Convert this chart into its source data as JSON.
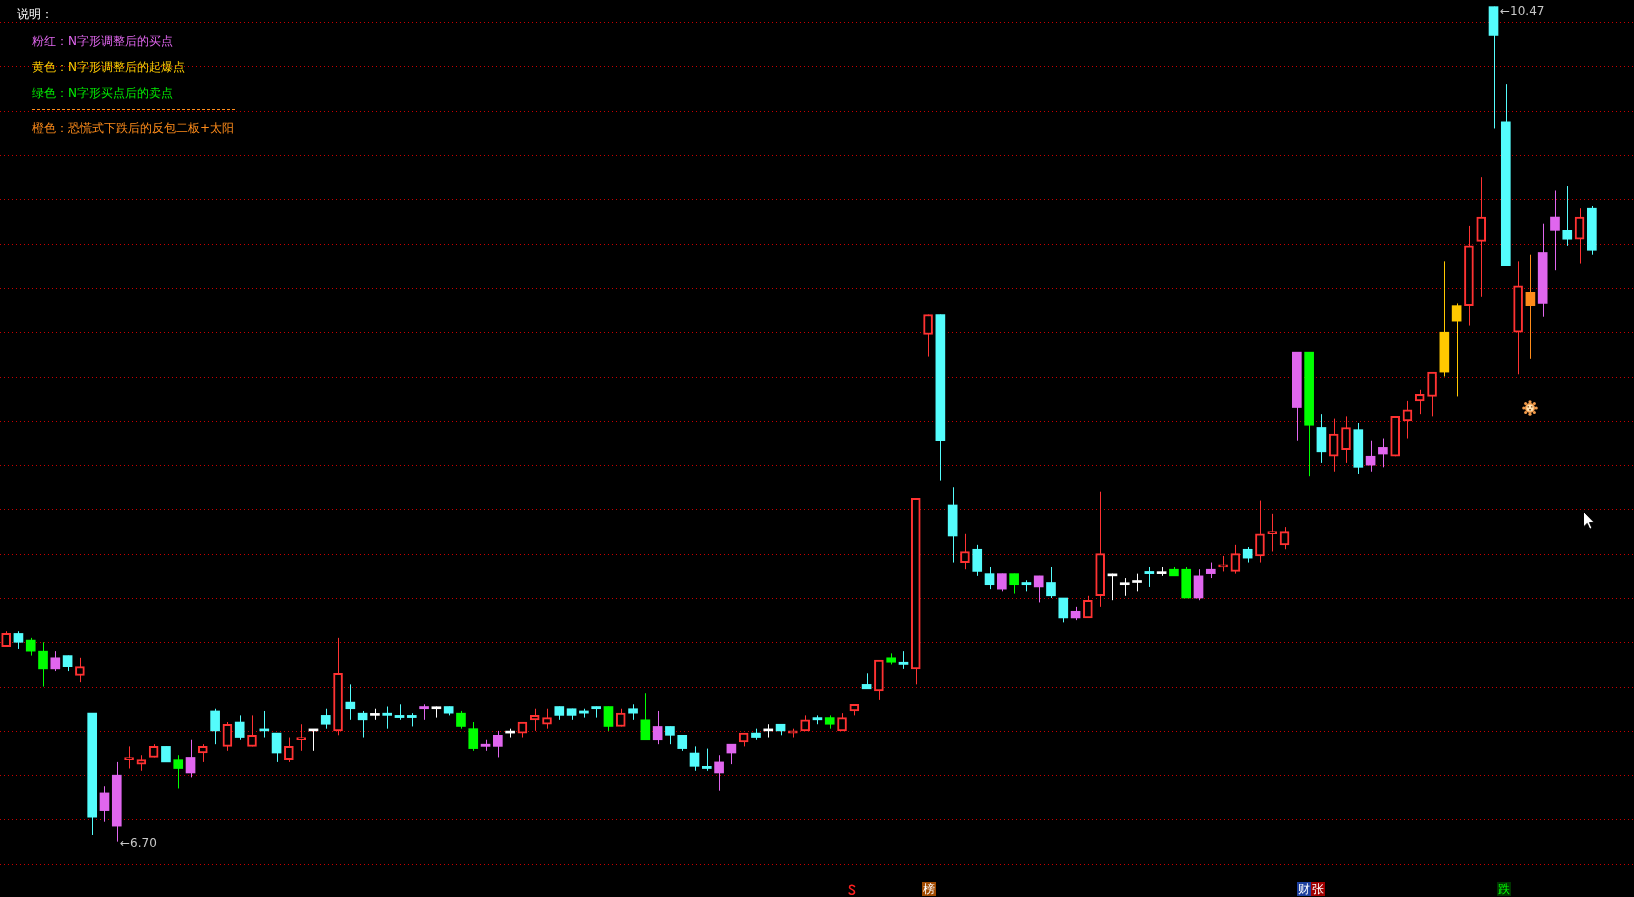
{
  "chart_data": {
    "type": "candlestick",
    "categories": [
      null,
      null,
      null,
      null,
      null,
      null,
      null,
      null,
      null,
      null,
      null,
      null,
      null,
      null,
      null,
      null,
      null,
      null,
      null,
      null,
      null,
      null,
      null,
      null,
      null,
      null,
      null,
      null,
      null,
      null,
      null,
      null,
      null,
      null,
      null,
      null,
      null,
      null,
      null,
      null,
      null,
      null,
      null,
      null,
      null,
      null,
      null,
      null,
      null,
      null,
      null,
      null,
      null,
      null,
      null,
      null,
      null,
      null,
      null,
      null,
      null,
      null,
      null,
      null,
      null,
      null,
      null,
      null,
      null,
      null,
      null,
      null,
      null,
      null,
      null,
      null,
      null,
      null,
      null,
      null,
      null,
      null,
      null,
      null,
      null,
      null,
      null,
      null,
      null,
      null,
      null,
      null,
      null,
      null,
      null,
      null,
      null,
      null,
      null,
      null,
      null,
      null,
      null,
      null,
      null,
      null,
      null,
      null,
      null,
      null,
      null,
      null,
      null,
      null,
      null,
      null,
      null,
      null,
      null,
      null,
      null,
      null,
      null,
      null,
      null,
      null,
      null,
      null,
      null,
      null
    ],
    "ohlc": [
      [
        7.58,
        7.65,
        7.58,
        7.64
      ],
      [
        7.64,
        7.65,
        7.57,
        7.6
      ],
      [
        7.61,
        7.62,
        7.54,
        7.56
      ],
      [
        7.56,
        7.6,
        7.4,
        7.48
      ],
      [
        7.48,
        7.56,
        7.47,
        7.53
      ],
      [
        7.54,
        7.54,
        7.47,
        7.49
      ],
      [
        7.45,
        7.53,
        7.42,
        7.49
      ],
      [
        7.28,
        7.28,
        6.73,
        6.81
      ],
      [
        6.84,
        6.95,
        6.79,
        6.92
      ],
      [
        6.77,
        7.06,
        6.7,
        7.0
      ],
      [
        7.07,
        7.13,
        7.03,
        7.08
      ],
      [
        7.05,
        7.09,
        7.02,
        7.07
      ],
      [
        7.08,
        7.14,
        7.08,
        7.13
      ],
      [
        7.13,
        7.13,
        7.06,
        7.06
      ],
      [
        7.07,
        7.09,
        6.94,
        7.03
      ],
      [
        7.01,
        7.16,
        6.99,
        7.08
      ],
      [
        7.1,
        7.14,
        7.06,
        7.13
      ],
      [
        7.29,
        7.3,
        7.14,
        7.2
      ],
      [
        7.13,
        7.24,
        7.11,
        7.23
      ],
      [
        7.24,
        7.27,
        7.16,
        7.17
      ],
      [
        7.13,
        7.27,
        7.13,
        7.18
      ],
      [
        7.2,
        7.29,
        7.17,
        7.2
      ],
      [
        7.19,
        7.19,
        7.06,
        7.1
      ],
      [
        7.07,
        7.17,
        7.06,
        7.13
      ],
      [
        7.16,
        7.23,
        7.11,
        7.17
      ],
      [
        7.2,
        7.2,
        7.11,
        7.2
      ],
      [
        7.27,
        7.3,
        7.21,
        7.23
      ],
      [
        7.2,
        7.62,
        7.18,
        7.46
      ],
      [
        7.33,
        7.41,
        7.25,
        7.3
      ],
      [
        7.28,
        7.29,
        7.17,
        7.25
      ],
      [
        7.27,
        7.3,
        7.25,
        7.27
      ],
      [
        7.28,
        7.31,
        7.21,
        7.27
      ],
      [
        7.27,
        7.32,
        7.25,
        7.26
      ],
      [
        7.27,
        7.28,
        7.22,
        7.26
      ],
      [
        7.3,
        7.32,
        7.25,
        7.31
      ],
      [
        7.3,
        7.31,
        7.26,
        7.3
      ],
      [
        7.31,
        7.31,
        7.27,
        7.28
      ],
      [
        7.28,
        7.29,
        7.21,
        7.22
      ],
      [
        7.21,
        7.24,
        7.11,
        7.12
      ],
      [
        7.14,
        7.16,
        7.11,
        7.13
      ],
      [
        7.13,
        7.2,
        7.08,
        7.18
      ],
      [
        7.19,
        7.21,
        7.17,
        7.19
      ],
      [
        7.19,
        7.24,
        7.17,
        7.24
      ],
      [
        7.25,
        7.3,
        7.2,
        7.27
      ],
      [
        7.23,
        7.3,
        7.21,
        7.26
      ],
      [
        7.31,
        7.31,
        7.25,
        7.27
      ],
      [
        7.3,
        7.3,
        7.25,
        7.27
      ],
      [
        7.29,
        7.3,
        7.26,
        7.28
      ],
      [
        7.31,
        7.31,
        7.26,
        7.3
      ],
      [
        7.31,
        7.31,
        7.2,
        7.22
      ],
      [
        7.22,
        7.3,
        7.22,
        7.28
      ],
      [
        7.3,
        7.32,
        7.25,
        7.28
      ],
      [
        7.25,
        7.37,
        7.16,
        7.16
      ],
      [
        7.16,
        7.29,
        7.14,
        7.22
      ],
      [
        7.22,
        7.22,
        7.14,
        7.18
      ],
      [
        7.18,
        7.18,
        7.11,
        7.12
      ],
      [
        7.1,
        7.13,
        7.02,
        7.04
      ],
      [
        7.04,
        7.12,
        7.02,
        7.03
      ],
      [
        7.01,
        7.09,
        6.93,
        7.06
      ],
      [
        7.1,
        7.14,
        7.05,
        7.14
      ],
      [
        7.15,
        7.19,
        7.13,
        7.19
      ],
      [
        7.19,
        7.21,
        7.16,
        7.17
      ],
      [
        7.2,
        7.23,
        7.17,
        7.2
      ],
      [
        7.23,
        7.23,
        7.18,
        7.2
      ],
      [
        7.19,
        7.21,
        7.17,
        7.2
      ],
      [
        7.2,
        7.27,
        7.2,
        7.25
      ],
      [
        7.26,
        7.27,
        7.23,
        7.25
      ],
      [
        7.26,
        7.27,
        7.21,
        7.23
      ],
      [
        7.2,
        7.28,
        7.2,
        7.26
      ],
      [
        7.29,
        7.32,
        7.27,
        7.32
      ],
      [
        7.41,
        7.46,
        7.39,
        7.39
      ],
      [
        7.38,
        7.52,
        7.34,
        7.52
      ],
      [
        7.53,
        7.55,
        7.5,
        7.51
      ],
      [
        7.51,
        7.56,
        7.48,
        7.5
      ],
      [
        7.48,
        8.25,
        7.41,
        8.25
      ],
      [
        8.99,
        9.08,
        8.89,
        9.08
      ],
      [
        9.08,
        9.08,
        8.33,
        8.51
      ],
      [
        8.22,
        8.3,
        7.96,
        8.08
      ],
      [
        7.96,
        8.09,
        7.93,
        8.01
      ],
      [
        8.02,
        8.04,
        7.9,
        7.92
      ],
      [
        7.91,
        7.94,
        7.84,
        7.86
      ],
      [
        7.84,
        7.91,
        7.83,
        7.91
      ],
      [
        7.91,
        7.91,
        7.82,
        7.86
      ],
      [
        7.87,
        7.88,
        7.83,
        7.86
      ],
      [
        7.85,
        7.9,
        7.78,
        7.9
      ],
      [
        7.87,
        7.94,
        7.8,
        7.81
      ],
      [
        7.8,
        7.8,
        7.69,
        7.71
      ],
      [
        7.71,
        7.76,
        7.7,
        7.74
      ],
      [
        7.71,
        7.81,
        7.71,
        7.79
      ],
      [
        7.81,
        8.28,
        7.76,
        8.0
      ],
      [
        7.9,
        7.91,
        7.79,
        7.9
      ],
      [
        7.86,
        7.89,
        7.81,
        7.86
      ],
      [
        7.87,
        7.91,
        7.83,
        7.87
      ],
      [
        7.92,
        7.94,
        7.85,
        7.91
      ],
      [
        7.91,
        7.94,
        7.9,
        7.91
      ],
      [
        7.93,
        7.94,
        7.9,
        7.9
      ],
      [
        7.93,
        7.94,
        7.8,
        7.8
      ],
      [
        7.8,
        7.93,
        7.79,
        7.9
      ],
      [
        7.91,
        7.96,
        7.89,
        7.93
      ],
      [
        7.94,
        7.99,
        7.92,
        7.95
      ],
      [
        7.92,
        8.04,
        7.91,
        8.0
      ],
      [
        8.02,
        8.03,
        7.96,
        7.98
      ],
      [
        7.99,
        8.24,
        7.96,
        8.09
      ],
      [
        8.09,
        8.18,
        8.01,
        8.1
      ],
      [
        8.04,
        8.12,
        8.02,
        8.1
      ],
      [
        8.66,
        8.91,
        8.51,
        8.91
      ],
      [
        8.91,
        8.91,
        8.35,
        8.58
      ],
      [
        8.57,
        8.63,
        8.41,
        8.46
      ],
      [
        8.44,
        8.61,
        8.37,
        8.54
      ],
      [
        8.47,
        8.62,
        8.41,
        8.57
      ],
      [
        8.56,
        8.59,
        8.36,
        8.39
      ],
      [
        8.4,
        8.51,
        8.37,
        8.44
      ],
      [
        8.45,
        8.52,
        8.39,
        8.48
      ],
      [
        8.44,
        8.62,
        8.44,
        8.62
      ],
      [
        8.6,
        8.69,
        8.52,
        8.65
      ],
      [
        8.69,
        8.74,
        8.63,
        8.72
      ],
      [
        8.71,
        8.82,
        8.62,
        8.82
      ],
      [
        8.82,
        9.32,
        8.8,
        9.0
      ],
      [
        9.05,
        9.13,
        8.71,
        9.12
      ],
      [
        9.12,
        9.48,
        9.03,
        9.39
      ],
      [
        9.41,
        9.7,
        9.16,
        9.52
      ],
      [
        10.47,
        10.47,
        9.92,
        10.34
      ],
      [
        9.95,
        10.12,
        9.3,
        9.3
      ],
      [
        9.0,
        9.32,
        8.81,
        9.21
      ],
      [
        9.12,
        9.35,
        8.88,
        9.18
      ],
      [
        9.13,
        9.49,
        9.07,
        9.36
      ],
      [
        9.46,
        9.64,
        9.28,
        9.52
      ],
      [
        9.46,
        9.66,
        9.39,
        9.42
      ],
      [
        9.42,
        9.56,
        9.31,
        9.52
      ],
      [
        9.56,
        9.57,
        9.35,
        9.37
      ]
    ],
    "color": "#ff3232",
    "colors": [
      "#ff3232",
      "#54fcfc",
      "#00ff00",
      "#00ff00",
      "#e066ee",
      "#54fcfc",
      "#ff3232",
      "#54fcfc",
      "#e066ee",
      "#e066ee",
      "#ff3232",
      "#ff3232",
      "#ff3232",
      "#54fcfc",
      "#00ff00",
      "#e066ee",
      "#ff3232",
      "#54fcfc",
      "#ff3232",
      "#54fcfc",
      "#ff3232",
      "#54fcfc",
      "#54fcfc",
      "#ff3232",
      "#ff3232",
      "#ffffff",
      "#54fcfc",
      "#ff3232",
      "#54fcfc",
      "#54fcfc",
      "#ffffff",
      "#54fcfc",
      "#54fcfc",
      "#54fcfc",
      "#e066ee",
      "#ffffff",
      "#54fcfc",
      "#00ff00",
      "#00ff00",
      "#e066ee",
      "#e066ee",
      "#ffffff",
      "#ff3232",
      "#ff3232",
      "#ff3232",
      "#54fcfc",
      "#54fcfc",
      "#54fcfc",
      "#54fcfc",
      "#00ff00",
      "#ff3232",
      "#54fcfc",
      "#00ff00",
      "#e066ee",
      "#54fcfc",
      "#54fcfc",
      "#54fcfc",
      "#54fcfc",
      "#e066ee",
      "#e066ee",
      "#ff3232",
      "#54fcfc",
      "#ffffff",
      "#54fcfc",
      "#ff3232",
      "#ff3232",
      "#54fcfc",
      "#00ff00",
      "#ff3232",
      "#ff3232",
      "#54fcfc",
      "#ff3232",
      "#00ff00",
      "#54fcfc",
      "#ff3232",
      "#ff3232",
      "#54fcfc",
      "#54fcfc",
      "#ff3232",
      "#54fcfc",
      "#54fcfc",
      "#e066ee",
      "#00ff00",
      "#54fcfc",
      "#e066ee",
      "#54fcfc",
      "#54fcfc",
      "#e066ee",
      "#ff3232",
      "#ff3232",
      "#ffffff",
      "#ffffff",
      "#ffffff",
      "#54fcfc",
      "#ffffff",
      "#00ff00",
      "#00ff00",
      "#e066ee",
      "#e066ee",
      "#ff3232",
      "#ff3232",
      "#54fcfc",
      "#ff3232",
      "#ff3232",
      "#ff3232",
      "#e066ee",
      "#00ff00",
      "#54fcfc",
      "#ff3232",
      "#ff3232",
      "#54fcfc",
      "#e066ee",
      "#e066ee",
      "#ff3232",
      "#ff3232",
      "#ff3232",
      "#ff3232",
      "#ffc800",
      "#ffc800",
      "#ff3232",
      "#ff3232",
      "#54fcfc",
      "#54fcfc",
      "#ff3232",
      "#ff8c1a",
      "#e066ee",
      "#e066ee",
      "#54fcfc",
      "#ff3232",
      "#54fcfc"
    ],
    "ylim": [
      6.45,
      10.5
    ],
    "yticks": [
      {
        "value": 6.6,
        "label": null
      },
      {
        "value": 6.8,
        "label": null
      },
      {
        "value": 7.0,
        "label": null
      },
      {
        "value": 7.2,
        "label": null
      },
      {
        "value": 7.4,
        "label": null
      },
      {
        "value": 7.6,
        "label": null
      },
      {
        "value": 7.8,
        "label": null
      },
      {
        "value": 8.0,
        "label": null
      },
      {
        "value": 8.2,
        "label": null
      },
      {
        "value": 8.4,
        "label": null
      },
      {
        "value": 8.6,
        "label": null
      },
      {
        "value": 8.8,
        "label": null
      },
      {
        "value": 9.0,
        "label": null
      },
      {
        "value": 9.2,
        "label": null
      },
      {
        "value": 9.4,
        "label": null
      },
      {
        "value": 9.6,
        "label": null
      },
      {
        "value": 9.8,
        "label": null
      },
      {
        "value": 10.0,
        "label": null
      },
      {
        "value": 10.2,
        "label": null
      },
      {
        "value": 10.4,
        "label": null
      }
    ],
    "grid": "y",
    "tick_labels": false,
    "annotations": [
      "说明：",
      "粉红：N字形调整后的买点",
      "黄色：N字形调整后的起爆点",
      "绿色：N字形买点后的卖点",
      "橙色：恐慌式下跌后的反包二板+太阳",
      "←10.47",
      "←6.70",
      "榜",
      "财",
      "张",
      "跌"
    ]
  }
}
